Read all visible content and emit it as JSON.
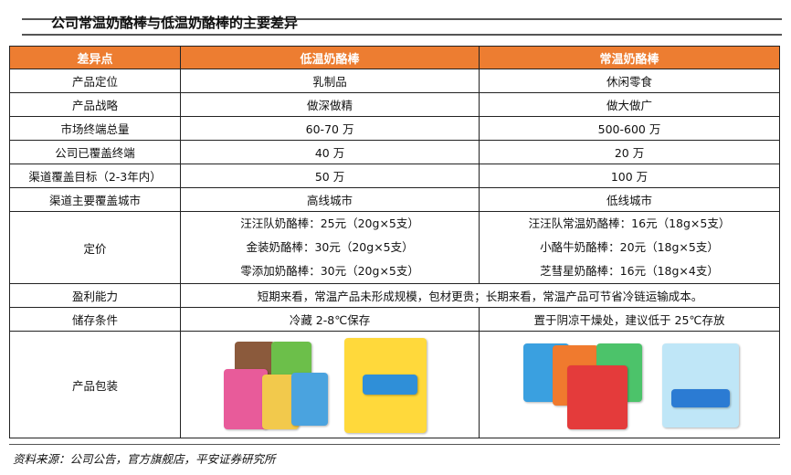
{
  "title": "公司常温奶酪棒与低温奶酪棒的主要差异",
  "headers": [
    "差异点",
    "低温奶酪棒",
    "常温奶酪棒"
  ],
  "rows": [
    [
      "产品定位",
      "乳制品",
      "休闲零食"
    ],
    [
      "产品战略",
      "做深做精",
      "做大做广"
    ],
    [
      "市场终端总量",
      "60-70 万",
      "500-600 万"
    ],
    [
      "公司已覆盖终端",
      "40 万",
      "20 万"
    ],
    [
      "渠道覆盖目标（2-3年内）",
      "50 万",
      "100 万"
    ],
    [
      "渠道主要覆盖城市",
      "高线城市",
      "低线城市"
    ]
  ],
  "pricing": {
    "label": "定价",
    "low": [
      "汪汪队奶酪棒：25元（20g×5支）",
      "金装奶酪棒：30元（20g×5支）",
      "零添加奶酪棒：30元（20g×5支）"
    ],
    "normal": [
      "汪汪队常温奶酪棒：16元（18g×5支）",
      "小酪牛奶酪棒：20元（18g×5支）",
      "芝彗星奶酪棒：16元（18g×4支）"
    ]
  },
  "profit": {
    "label": "盈利能力",
    "text": "短期来看，常温产品未形成规模，包材更贵；长期来看，常温产品可节省冷链运输成本。"
  },
  "storage": {
    "label": "储存条件",
    "low": "冷藏 2-8℃保存",
    "normal": "置于阴凉干燥处，建议低于 25℃存放"
  },
  "packaging": {
    "label": "产品包装"
  },
  "source": "资料来源：公司公告，官方旗舰店，平安证券研究所"
}
